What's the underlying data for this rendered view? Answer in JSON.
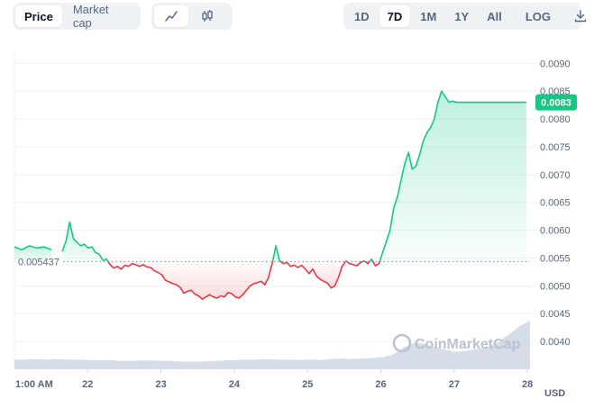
{
  "toolbar": {
    "type_tabs": [
      "Price",
      "Market cap"
    ],
    "active_type": "Price",
    "style_icons": [
      "line-chart-icon",
      "candlestick-icon"
    ],
    "range_tabs": [
      "1D",
      "7D",
      "1M",
      "1Y",
      "All"
    ],
    "active_range": "7D",
    "log_label": "LOG",
    "download_icon": "download-icon"
  },
  "chart_data": {
    "type": "line",
    "currency_label": "USD",
    "y_ticks": [
      "0.0090",
      "0.0085",
      "0.0080",
      "0.0075",
      "0.0070",
      "0.0065",
      "0.0060",
      "0.0055",
      "0.0050",
      "0.0045",
      "0.0040"
    ],
    "ylim": [
      0.0035,
      0.0092
    ],
    "x_ticks": [
      "1:00 AM",
      "22",
      "23",
      "24",
      "25",
      "26",
      "27",
      "28"
    ],
    "baseline_value": 0.005437,
    "baseline_label": "0.005437",
    "current_value": 0.0083,
    "current_label": "0.0083",
    "watermark": "CoinMarketCap",
    "colors": {
      "up": "#16c784",
      "down": "#ea3943",
      "volume": "#cfd6e4",
      "grid": "#eff2f5"
    },
    "series": [
      {
        "x": [
          0,
          0.1,
          0.2,
          0.3,
          0.4,
          0.5,
          0.6,
          0.65,
          0.7,
          0.75,
          0.8,
          0.85,
          0.9,
          0.95,
          1.0,
          1.05,
          1.1,
          1.15,
          1.2,
          1.25,
          1.3,
          1.35,
          1.4,
          1.45,
          1.5,
          1.55,
          1.6,
          1.65,
          1.7,
          1.75,
          1.8,
          1.85,
          1.9,
          1.95,
          2.0,
          2.05,
          2.1,
          2.15,
          2.2,
          2.25,
          2.3,
          2.35,
          2.4,
          2.45,
          2.5,
          2.55,
          2.6,
          2.65,
          2.7,
          2.75,
          2.8,
          2.85,
          2.9,
          2.95,
          3.0,
          3.05,
          3.1,
          3.15,
          3.2,
          3.25,
          3.3,
          3.35,
          3.4,
          3.45,
          3.5,
          3.55,
          3.6,
          3.65,
          3.7,
          3.75,
          3.8,
          3.85,
          3.9,
          3.95,
          4.0,
          4.05,
          4.1,
          4.15,
          4.2,
          4.25,
          4.3,
          4.35,
          4.4,
          4.45,
          4.5,
          4.55,
          4.6,
          4.65,
          4.7,
          4.75,
          4.8,
          4.85,
          4.9,
          4.95,
          5.0,
          5.05,
          5.1,
          5.15,
          5.2,
          5.25,
          5.3,
          5.35,
          5.4,
          5.45,
          5.5,
          5.55,
          5.6,
          5.65,
          5.7,
          5.75,
          5.8,
          5.85,
          5.9,
          5.95,
          6.0,
          6.05,
          6.1,
          6.15,
          6.2,
          6.25,
          6.3,
          6.35,
          6.4,
          6.45,
          6.5,
          6.55,
          6.6,
          6.65,
          6.7,
          6.75,
          6.8,
          6.85,
          6.9,
          6.95,
          7.0
        ],
        "values": [
          0.0057,
          0.00565,
          0.00572,
          0.00568,
          0.0057,
          0.00565,
          null,
          0.00562,
          0.0058,
          0.00615,
          0.00585,
          0.00578,
          0.00572,
          0.00575,
          0.00568,
          0.0057,
          0.0056,
          0.00557,
          0.00546,
          0.00548,
          0.00538,
          0.00532,
          0.00535,
          0.0053,
          0.00537,
          0.00535,
          0.0054,
          0.00538,
          0.00535,
          0.00538,
          0.00534,
          0.00533,
          0.00527,
          0.00524,
          0.0052,
          0.0051,
          0.00507,
          0.00504,
          0.00502,
          0.00497,
          0.00487,
          0.0049,
          0.00492,
          0.00485,
          0.00482,
          0.00476,
          0.0048,
          0.00484,
          0.0048,
          0.00478,
          0.00482,
          0.0048,
          0.00488,
          0.00486,
          0.0048,
          0.00478,
          0.00484,
          0.00492,
          0.005,
          0.00504,
          0.00506,
          0.00508,
          0.00502,
          0.00515,
          0.0054,
          0.00572,
          0.00545,
          0.0054,
          0.00542,
          0.00535,
          0.00537,
          0.00533,
          0.00537,
          0.0053,
          0.00522,
          0.0053,
          0.00518,
          0.00512,
          0.00508,
          0.00505,
          0.00496,
          0.005,
          0.00515,
          0.00535,
          0.00545,
          0.0054,
          0.00538,
          0.00536,
          0.00542,
          0.00545,
          0.0054,
          0.00548,
          0.00536,
          0.0054,
          0.0056,
          0.0058,
          0.006,
          0.0064,
          0.0066,
          0.0069,
          0.0072,
          0.0074,
          0.0071,
          0.00715,
          0.00735,
          0.0076,
          0.00775,
          0.00785,
          0.008,
          0.0083,
          0.0085,
          0.0084,
          0.0083,
          0.00832,
          0.0083,
          0.0083,
          0.0083,
          0.0083,
          0.0083,
          0.0083,
          0.0083,
          0.0083,
          0.0083,
          0.0083,
          0.0083,
          0.0083,
          0.0083,
          0.0083,
          0.0083,
          0.0083,
          0.0083,
          0.0083,
          0.0083,
          0.0083,
          0.0083
        ]
      }
    ],
    "volume_relative": [
      0.2,
      0.2,
      0.21,
      0.2,
      0.21,
      0.2,
      0.2,
      0.19,
      0.18,
      0.19,
      0.17,
      0.17,
      0.18,
      0.18,
      0.17,
      0.17,
      0.16,
      0.16,
      0.16,
      0.17,
      0.18,
      0.19,
      0.2,
      0.2,
      0.21,
      0.2,
      0.2,
      0.19,
      0.2,
      0.19,
      0.21,
      0.22,
      0.21,
      0.22,
      0.23,
      0.25,
      0.3,
      0.45,
      0.55,
      0.52,
      0.45,
      0.4,
      0.36,
      0.38,
      0.42,
      0.46,
      0.56,
      0.72,
      0.88,
      1.0
    ]
  }
}
